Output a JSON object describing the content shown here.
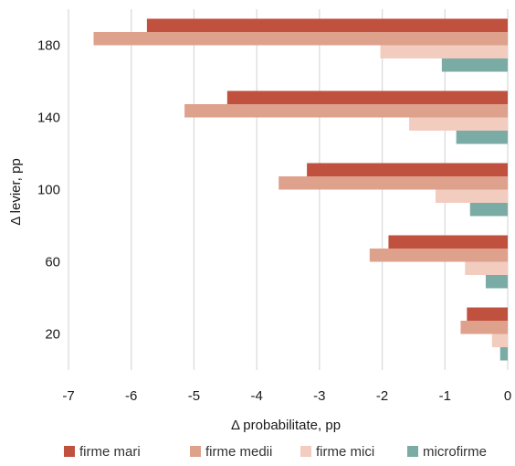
{
  "chart_data": {
    "type": "bar",
    "orientation": "horizontal",
    "title": "",
    "xlabel": "Δ probabilitate, pp",
    "ylabel": "Δ levier, pp",
    "categories": [
      "180",
      "140",
      "100",
      "60",
      "20"
    ],
    "xlim": [
      -7,
      0
    ],
    "xticks": [
      "-7",
      "-6",
      "-5",
      "-4",
      "-3",
      "-2",
      "-1",
      "0"
    ],
    "grid": "vertical",
    "legend_position": "bottom",
    "series": [
      {
        "name": "firme mari",
        "color": "#c0513f",
        "values": [
          -5.75,
          -4.47,
          -3.2,
          -1.9,
          -0.65
        ]
      },
      {
        "name": "firme medii",
        "color": "#dea18c",
        "values": [
          -6.6,
          -5.15,
          -3.65,
          -2.2,
          -0.75
        ]
      },
      {
        "name": "firme mici",
        "color": "#f1ccbf",
        "values": [
          -2.03,
          -1.57,
          -1.15,
          -0.68,
          -0.25
        ]
      },
      {
        "name": "microfirme",
        "color": "#7aaca5",
        "values": [
          -1.05,
          -0.82,
          -0.6,
          -0.35,
          -0.12
        ]
      }
    ]
  }
}
